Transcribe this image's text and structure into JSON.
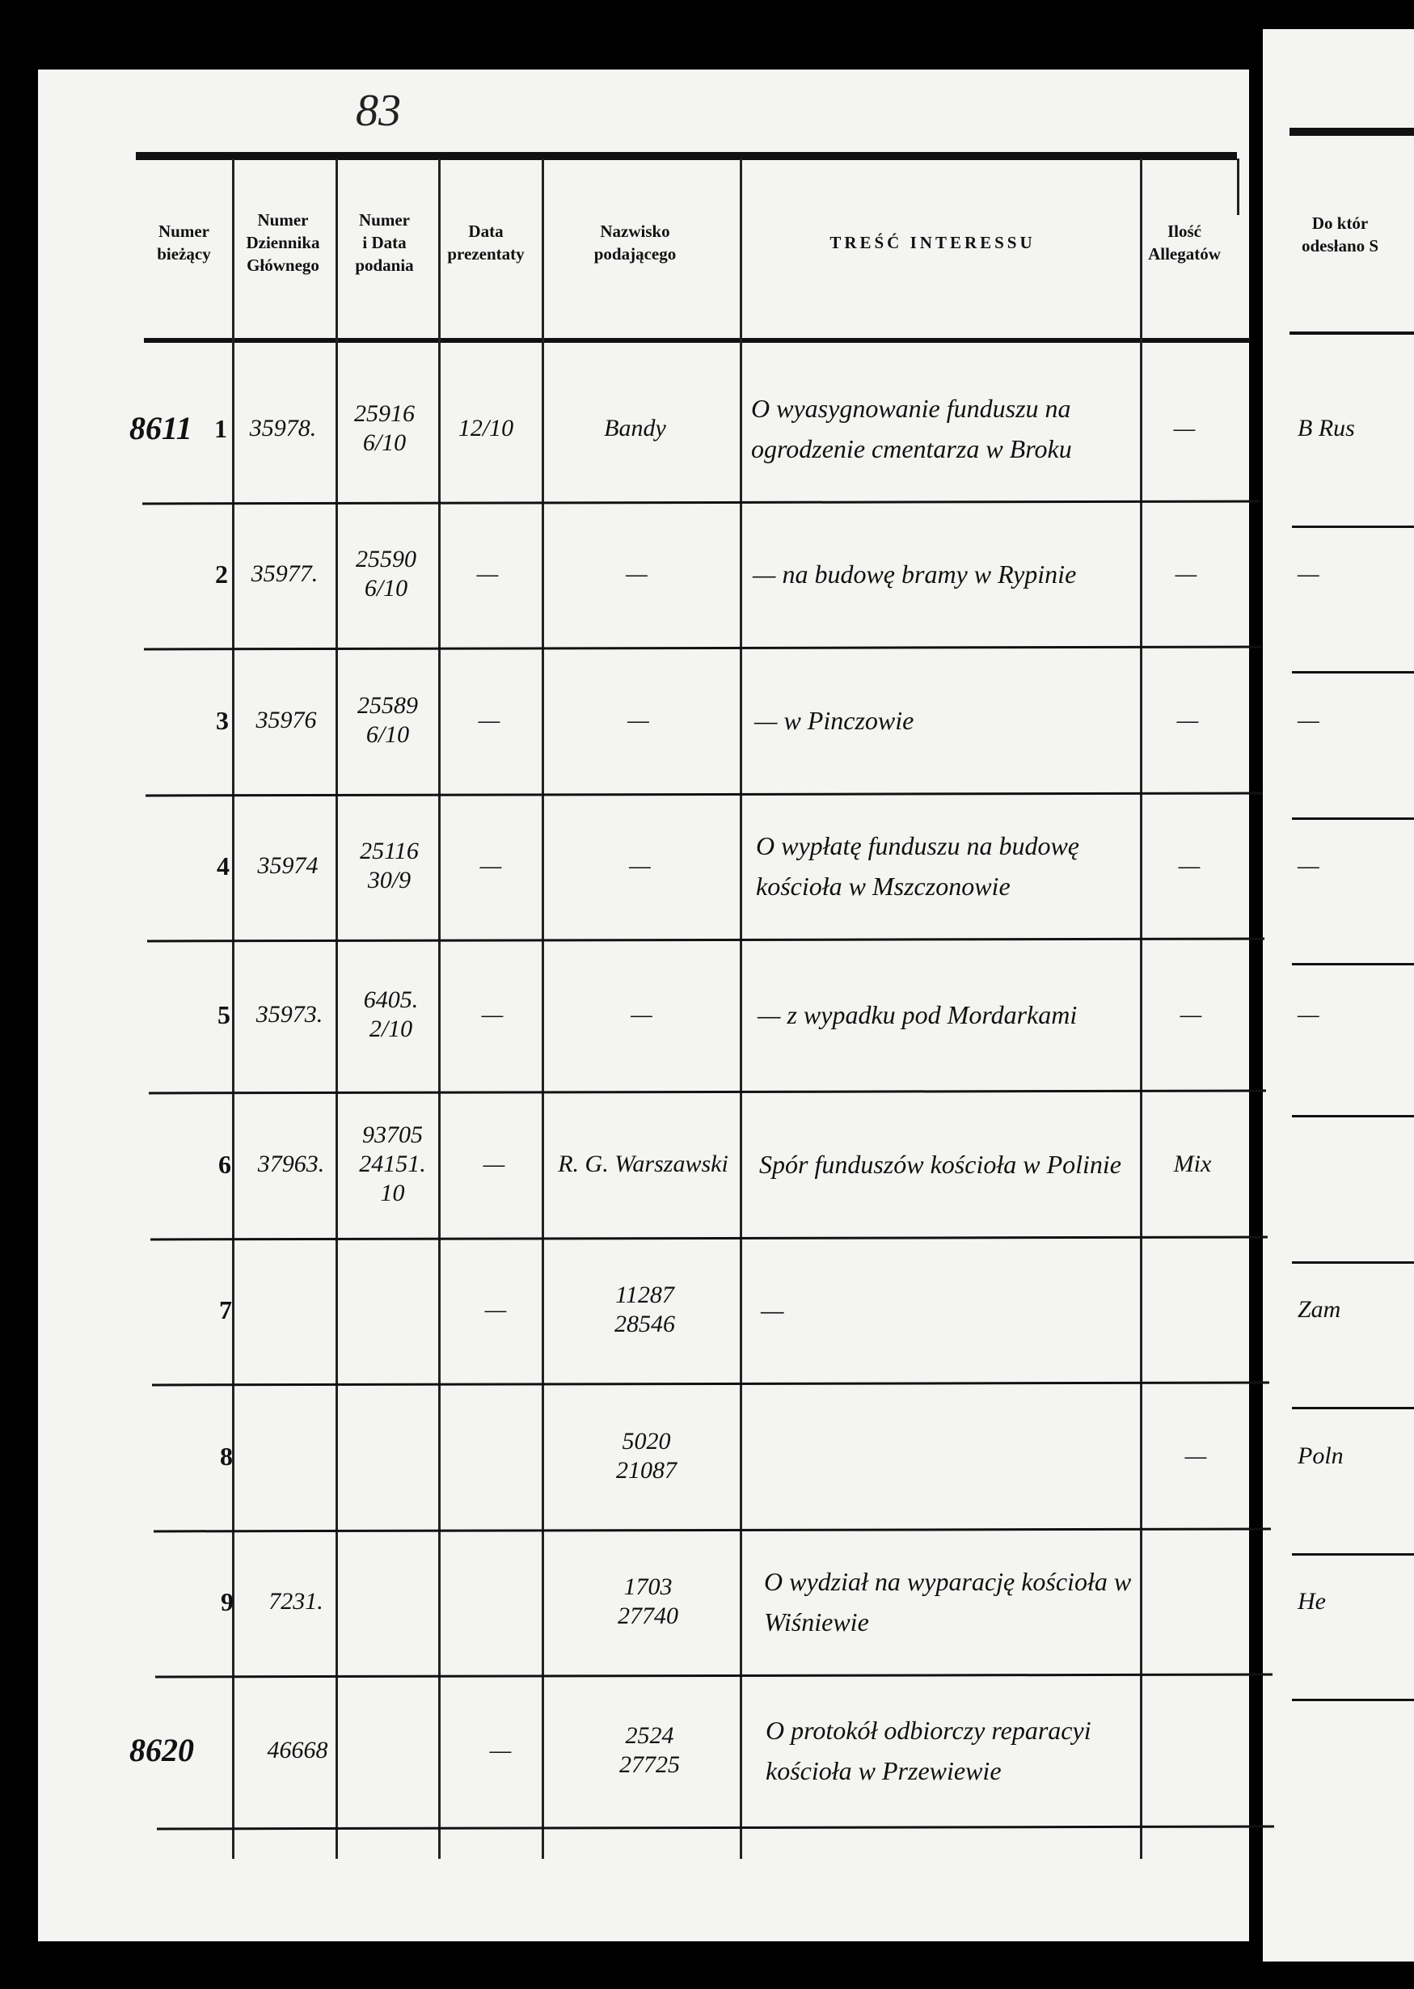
{
  "page_number": "83",
  "header": {
    "columns": [
      "Numer\nbieżący",
      "Numer\nDziennika\nGłównego",
      "Numer\ni Data\npodania",
      "Data\nprezentaty",
      "Nazwisko\npodającego",
      "TREŚĆ INTERESSU",
      "Ilość\nAllegatów"
    ],
    "next_page": "Do któr\nodesłano S"
  },
  "rows": [
    {
      "margin": "8611",
      "number": "1",
      "journal": "35978.",
      "submission": "25916\n6/10",
      "presented": "12/10",
      "name": "Bandy",
      "content": "O wyasygnowanie funduszu na ogrodzenie cmentarza w Broku",
      "attachments": "—",
      "sent_to": "B Rus"
    },
    {
      "number": "2",
      "journal": "35977.",
      "submission": "25590\n6/10",
      "presented": "—",
      "name": "—",
      "content": "— na budowę bramy w Rypinie",
      "attachments": "—",
      "sent_to": "—"
    },
    {
      "number": "3",
      "journal": "35976",
      "submission": "25589\n6/10",
      "presented": "—",
      "name": "—",
      "content": "— w Pinczowie",
      "attachments": "—",
      "sent_to": "—"
    },
    {
      "number": "4",
      "journal": "35974",
      "submission": "25116\n30/9",
      "presented": "—",
      "name": "—",
      "content": "O wypłatę funduszu na budowę kościoła w Mszczonowie",
      "attachments": "—",
      "sent_to": "—"
    },
    {
      "number": "5",
      "journal": "35973.",
      "submission": "6405.\n2/10",
      "presented": "—",
      "name": "—",
      "content": "— z wypadku pod Mordarkami",
      "attachments": "—",
      "sent_to": "—"
    },
    {
      "number": "6",
      "journal": "37963.",
      "submission": "93705\n24151.\n10",
      "presented": "—",
      "name": "R. G. Warszawski",
      "content": "Spór funduszów kościoła w Polinie",
      "attachments": "Mix"
    },
    {
      "number": "7",
      "presented": "—",
      "name": "11287\n28546",
      "content": "—",
      "sent_to": "Zam"
    },
    {
      "number": "8",
      "name": "5020\n21087",
      "attachments": "—",
      "sent_to": "Poln"
    },
    {
      "number": "9",
      "journal": "7231.",
      "name": "1703\n27740",
      "content": "O wydział na wyparację kościoła w Wiśniewie",
      "sent_to": "He"
    },
    {
      "margin": "8620",
      "journal": "46668",
      "presented": "—",
      "name": "2524\n27725",
      "content": "O protokół odbiorczy reparacyi kościoła w Przewiewie"
    }
  ]
}
